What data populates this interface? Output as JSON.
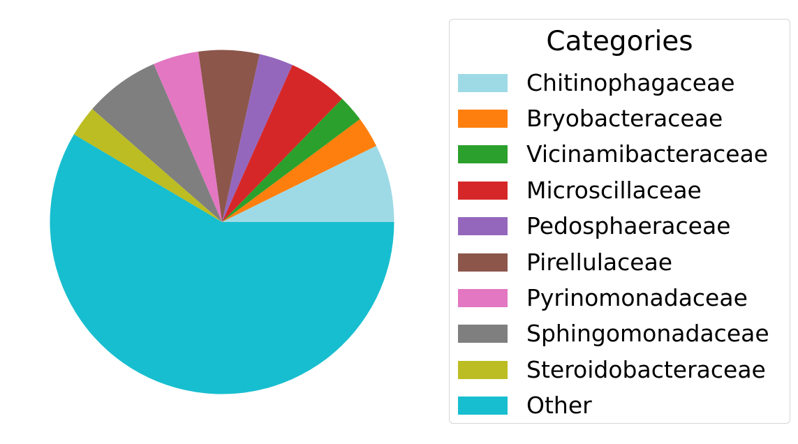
{
  "chart_data": {
    "type": "pie",
    "title": "",
    "start_angle_deg": 0,
    "direction": "counterclockwise",
    "legend": {
      "title": "Categories",
      "placement": "right"
    },
    "slices": [
      {
        "label": "Chitinophagaceae",
        "value": 7.3,
        "color": "#9edae5"
      },
      {
        "label": "Bryobacteraceae",
        "value": 2.9,
        "color": "#ff7f0e"
      },
      {
        "label": "Vicinamibacteraceae",
        "value": 2.5,
        "color": "#2ca02c"
      },
      {
        "label": "Microscillaceae",
        "value": 5.6,
        "color": "#d62728"
      },
      {
        "label": "Pedosphaeraceae",
        "value": 3.2,
        "color": "#9467bd"
      },
      {
        "label": "Pirellulaceae",
        "value": 5.7,
        "color": "#8c564b"
      },
      {
        "label": "Pyrinomonadaceae",
        "value": 4.3,
        "color": "#e377c2"
      },
      {
        "label": "Sphingomonadaceae",
        "value": 7.1,
        "color": "#7f7f7f"
      },
      {
        "label": "Steroidobacteraceae",
        "value": 2.9,
        "color": "#bcbd22"
      },
      {
        "label": "Other",
        "value": 58.5,
        "color": "#17becf"
      }
    ]
  }
}
